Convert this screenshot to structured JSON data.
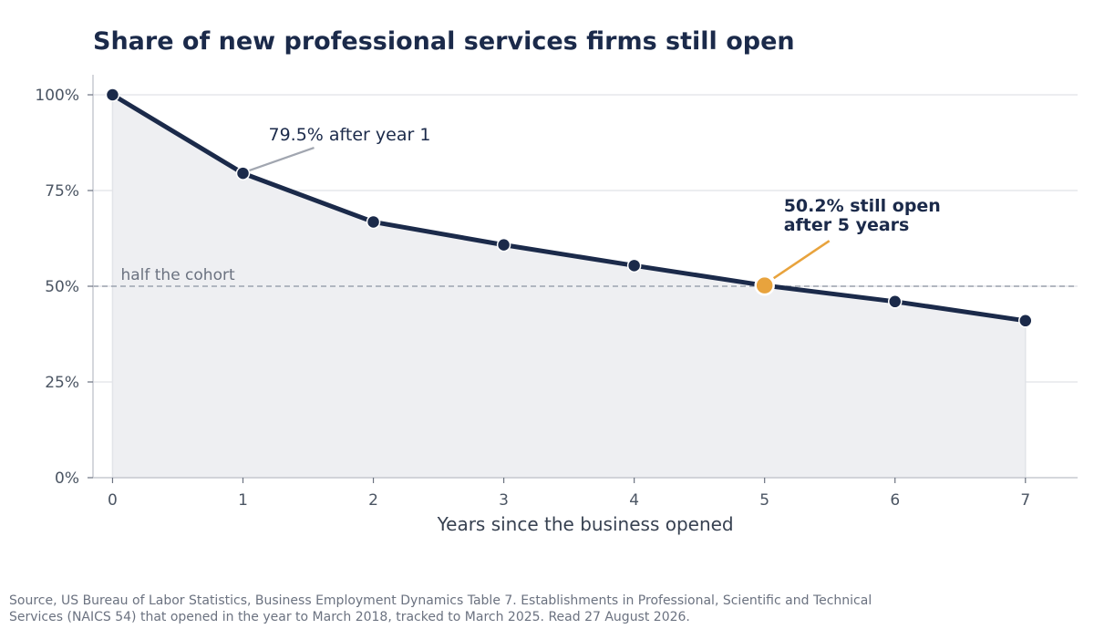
{
  "chart_data": {
    "type": "line",
    "title": "Share of new professional services firms still open",
    "xlabel": "Years since the business opened",
    "ylabel": "",
    "x": [
      0,
      1,
      2,
      3,
      4,
      5,
      6,
      7
    ],
    "series": [
      {
        "values": [
          100,
          79.5,
          66.8,
          60.8,
          55.4,
          50.2,
          46.0,
          41.0
        ]
      }
    ],
    "x_ticks": [
      "0",
      "1",
      "2",
      "3",
      "4",
      "5",
      "6",
      "7"
    ],
    "y_ticks": [
      0,
      25,
      50,
      75,
      100
    ],
    "y_tick_labels": [
      "0%",
      "25%",
      "50%",
      "75%",
      "100%"
    ],
    "xlim": [
      -0.15,
      7.4
    ],
    "ylim": [
      0,
      100
    ],
    "grid": "horizontal",
    "area_fill": true,
    "reference_line": {
      "value": 50,
      "label": "half the cohort"
    },
    "annotations": [
      {
        "x": 1,
        "y": 79.5,
        "text": "79.5% after year 1"
      },
      {
        "x": 5,
        "y": 50.2,
        "lines": [
          "50.2% still open",
          "after 5 years"
        ],
        "highlight": true
      }
    ]
  },
  "source": "Source, US Bureau of Labor Statistics, Business Employment Dynamics Table 7. Establishments in Professional, Scientific and Technical Services (NAICS 54) that opened in the year to March 2018, tracked to March 2025. Read 27 August 2026.",
  "colors": {
    "line": "#1b2a4a",
    "area": "#eeeff2",
    "highlight": "#e8a33d",
    "grid": "#e5e7eb",
    "reference": "#9ca3af",
    "title": "#1b2a4a"
  }
}
